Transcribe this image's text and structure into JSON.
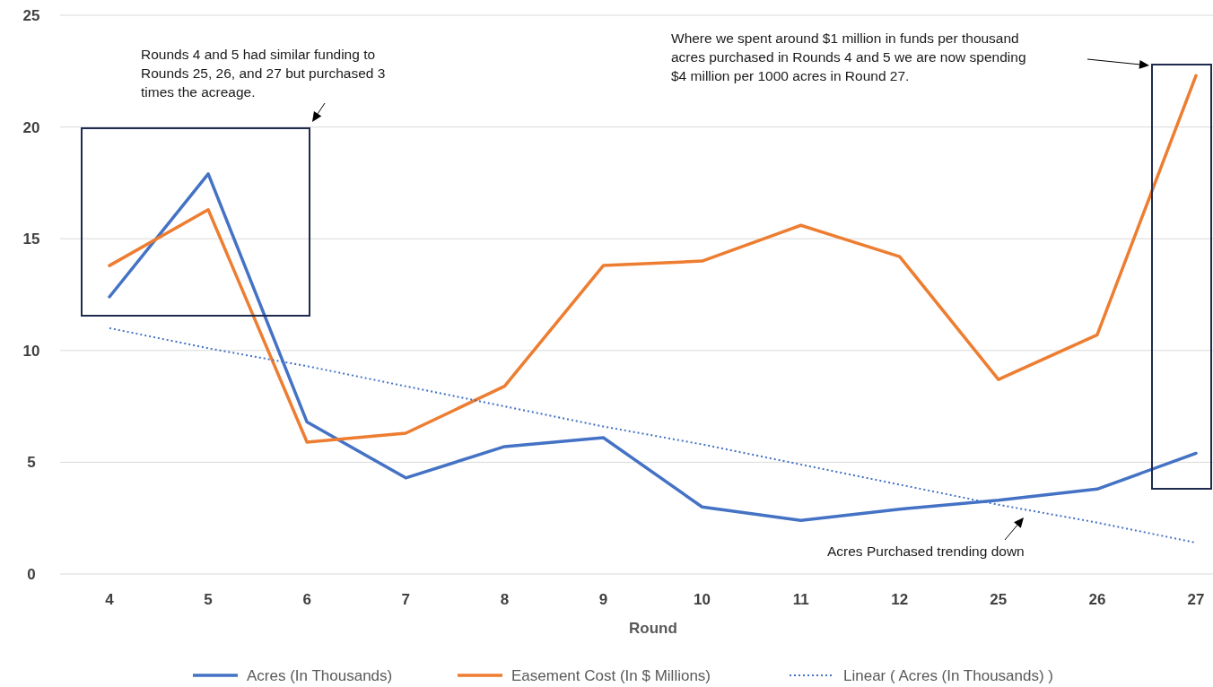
{
  "chart_data": {
    "type": "line",
    "xlabel": "Round",
    "categories": [
      "4",
      "5",
      "6",
      "7",
      "8",
      "9",
      "10",
      "11",
      "12",
      "25",
      "26",
      "27"
    ],
    "series": [
      {
        "name": "Acres (In Thousands)",
        "color": "#4472c4",
        "values": [
          12.4,
          17.9,
          6.8,
          4.3,
          5.7,
          6.1,
          3.0,
          2.4,
          2.9,
          3.3,
          3.8,
          5.4
        ]
      },
      {
        "name": "Easement Cost (In $ Millions)",
        "color": "#ed7d31",
        "values": [
          13.8,
          16.3,
          5.9,
          6.3,
          8.4,
          13.8,
          14.0,
          15.6,
          14.2,
          8.7,
          10.7,
          22.3
        ]
      },
      {
        "name": "Linear ( Acres (In Thousands) )",
        "color": "#4472c4",
        "line_style": "dotted",
        "values": [
          11.0,
          10.1,
          9.3,
          8.4,
          7.5,
          6.6,
          5.8,
          4.9,
          4.0,
          3.1,
          2.3,
          1.4
        ]
      }
    ],
    "ylim": [
      0,
      25
    ],
    "yticks": [
      0,
      5,
      10,
      15,
      20,
      25
    ],
    "grid": "y",
    "legend": "bottom",
    "line_style": "solid",
    "marker": "none",
    "annotations": [
      "Rounds 4 and 5 had similar funding to\nRounds 25, 26, and 27 but purchased 3\ntimes the acreage.",
      "Where we spent around $1 million in funds per thousand\nacres purchased in Rounds 4 and 5 we are now spending\n$4 million per 1000 acres in Round 27.",
      "Acres Purchased trending down"
    ]
  }
}
